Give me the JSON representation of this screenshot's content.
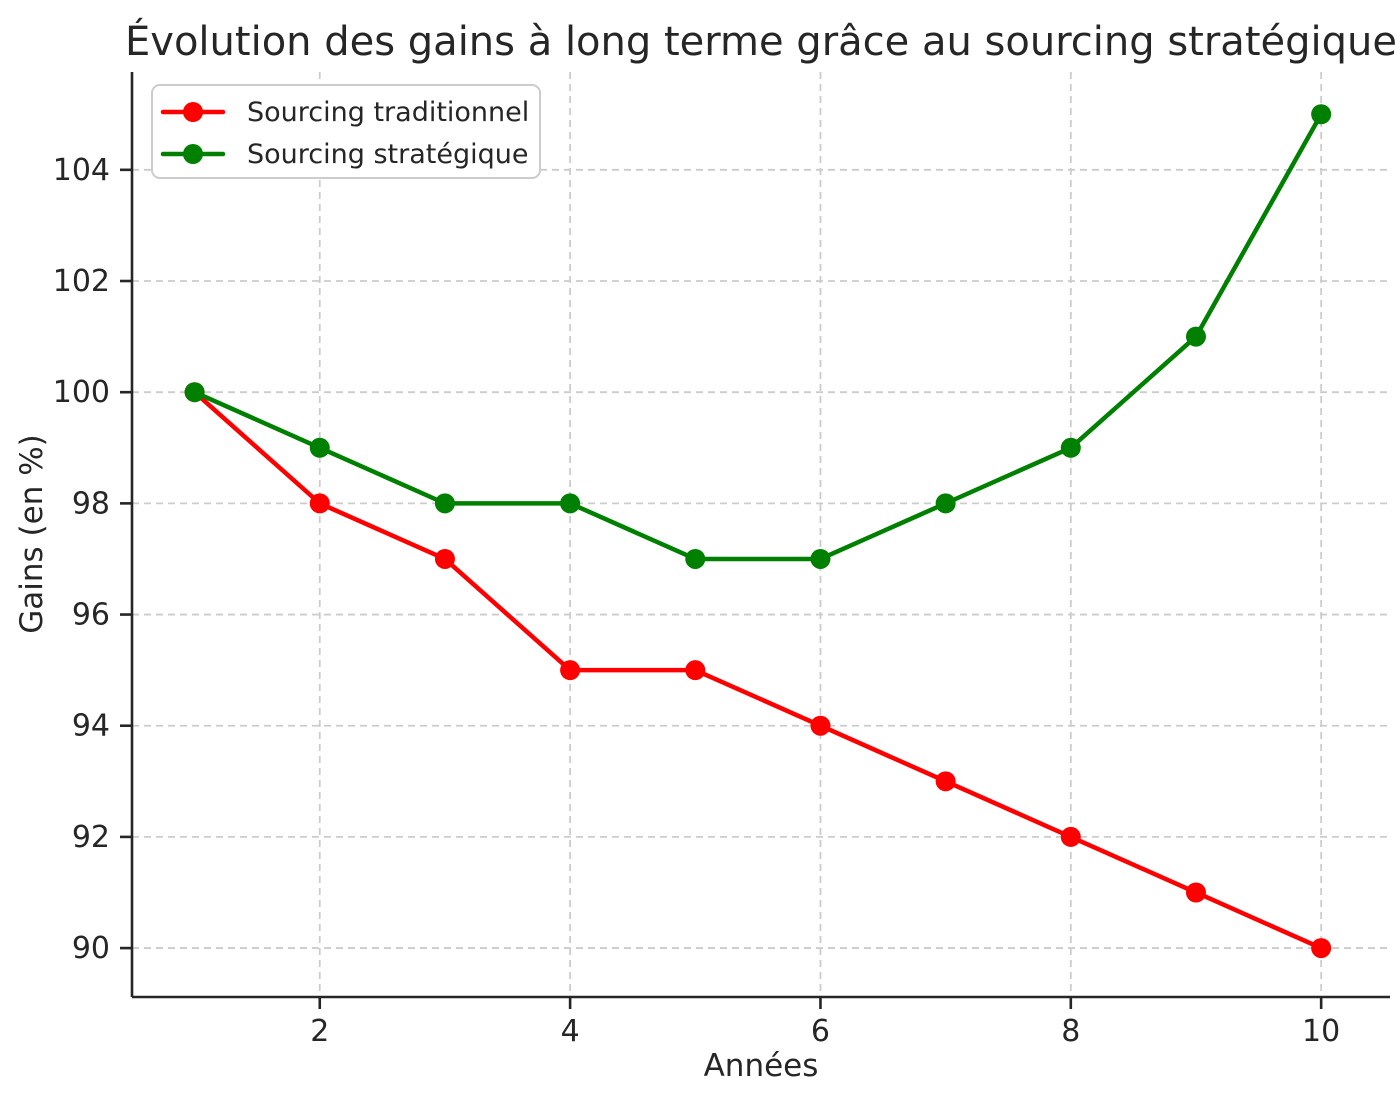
{
  "chart_data": {
    "type": "line",
    "title": "Évolution des gains à long terme grâce au sourcing stratégique",
    "xlabel": "Années",
    "ylabel": "Gains (en %)",
    "x": [
      1,
      2,
      3,
      4,
      5,
      6,
      7,
      8,
      9,
      10
    ],
    "series": [
      {
        "name": "Sourcing traditionnel",
        "color": "#ff0000",
        "values": [
          100,
          98,
          97,
          95,
          95,
          94,
          93,
          92,
          91,
          90
        ]
      },
      {
        "name": "Sourcing stratégique",
        "color": "#008000",
        "values": [
          100,
          99,
          98,
          98,
          97,
          97,
          98,
          99,
          101,
          105
        ]
      }
    ],
    "xticks": [
      2,
      4,
      6,
      8,
      10
    ],
    "yticks": [
      90,
      92,
      94,
      96,
      98,
      100,
      102,
      104
    ],
    "xlim": [
      0.5,
      10.55
    ],
    "ylim": [
      89.12,
      105.76
    ],
    "grid": true,
    "grid_style": "dashed",
    "legend_position": "upper left",
    "colors": {
      "text": "#262626",
      "grid": "#cccccc",
      "spine": "#262626",
      "background": "#ffffff"
    }
  }
}
